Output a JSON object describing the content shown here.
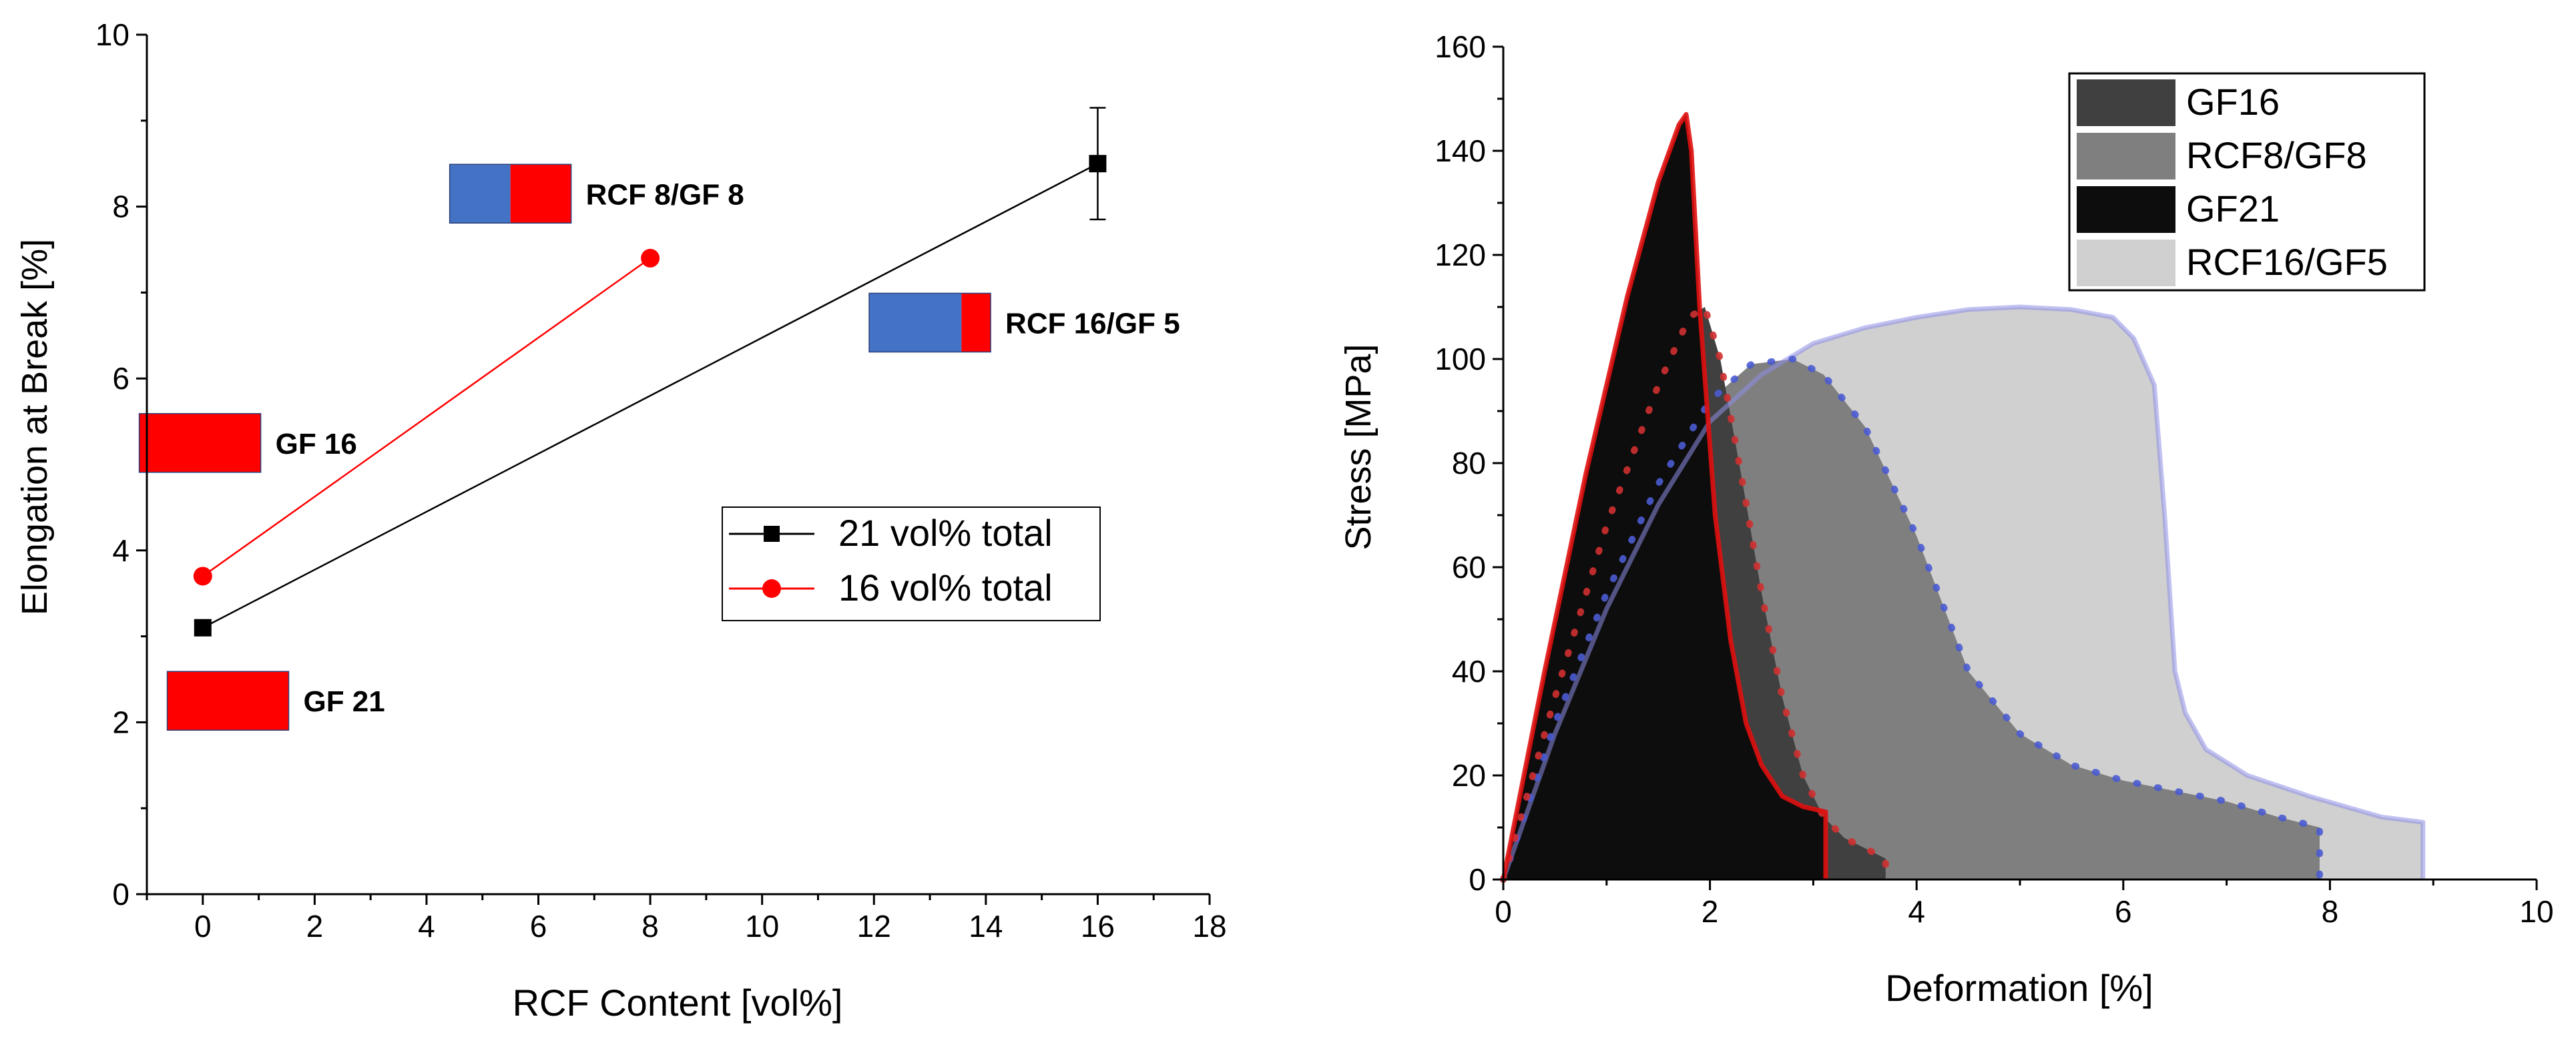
{
  "chart_data": [
    {
      "type": "scatter",
      "title": "",
      "xlabel": "RCF Content [vol%]",
      "ylabel": "Elongation at Break [%]",
      "xlim": [
        -1,
        18
      ],
      "ylim": [
        0,
        10
      ],
      "xticks": [
        0,
        2,
        4,
        6,
        8,
        10,
        12,
        14,
        16,
        18
      ],
      "yticks": [
        0,
        2,
        4,
        6,
        8,
        10
      ],
      "grid": false,
      "legend_position": "center-right",
      "series": [
        {
          "name": "21 vol% total",
          "marker": "square",
          "color": "#000000",
          "x": [
            0,
            16
          ],
          "y": [
            3.1,
            8.5
          ],
          "error": [
            0,
            0.65
          ]
        },
        {
          "name": "16 vol% total",
          "marker": "circle",
          "color": "#ff0000",
          "x": [
            0,
            8
          ],
          "y": [
            3.7,
            7.4
          ],
          "error": [
            0,
            0
          ]
        }
      ],
      "annotations": [
        {
          "label": "RCF 8/GF 8",
          "center_x": 5.5,
          "center_y": 8.15,
          "rcf_fraction": 0.5
        },
        {
          "label": "RCF 16/GF 5",
          "center_x": 13.0,
          "center_y": 6.65,
          "rcf_fraction": 0.76
        },
        {
          "label": "GF 16",
          "center_x": -0.05,
          "center_y": 5.25,
          "rcf_fraction": 0
        },
        {
          "label": "GF 21",
          "center_x": 0.45,
          "center_y": 2.25,
          "rcf_fraction": 0
        }
      ],
      "bar_colors": {
        "rcf": "#4472c4",
        "gf": "#ff0000"
      }
    },
    {
      "type": "area",
      "title": "",
      "xlabel": "Deformation [%]",
      "ylabel": "Stress [MPa]",
      "xlim": [
        0,
        10
      ],
      "ylim": [
        0,
        160
      ],
      "xticks": [
        0,
        2,
        4,
        6,
        8,
        10
      ],
      "yticks": [
        0,
        20,
        40,
        60,
        80,
        100,
        120,
        140,
        160
      ],
      "grid": false,
      "legend_position": "top-right",
      "legend": [
        "GF16",
        "RCF8/GF8",
        "GF21",
        "RCF16/GF5"
      ],
      "series": [
        {
          "name": "RCF16/GF5",
          "fill": "#d0d0d0",
          "outline": "#8e8ee8",
          "x": [
            0,
            0.5,
            1,
            1.5,
            2,
            2.5,
            3,
            3.5,
            4,
            4.5,
            5,
            5.5,
            5.9,
            6.1,
            6.3,
            6.4,
            6.5,
            6.6,
            6.8,
            7.2,
            7.8,
            8.5,
            8.9,
            8.9
          ],
          "y": [
            0,
            28,
            52,
            72,
            88,
            97,
            103,
            106,
            108,
            109.5,
            110,
            109.5,
            108,
            104,
            95,
            70,
            40,
            32,
            25,
            20,
            16,
            12,
            11,
            0
          ]
        },
        {
          "name": "RCF8/GF8",
          "fill": "#7f7f7f",
          "outline": "#4a5bd0",
          "x": [
            0,
            0.5,
            1,
            1.5,
            2,
            2.4,
            2.8,
            3.1,
            3.5,
            4,
            4.5,
            5,
            5.5,
            6,
            6.5,
            7,
            7.5,
            7.9,
            7.9
          ],
          "y": [
            0,
            30,
            55,
            76,
            92,
            99,
            100,
            97,
            87,
            66,
            40,
            28,
            22,
            19,
            17,
            15,
            12,
            10,
            0
          ]
        },
        {
          "name": "GF16",
          "fill": "#404040",
          "outline": "#d03030",
          "x": [
            0,
            0.5,
            1,
            1.5,
            1.8,
            1.95,
            2.1,
            2.3,
            2.5,
            2.7,
            2.9,
            3.1,
            3.3,
            3.5,
            3.7,
            3.7
          ],
          "y": [
            0,
            35,
            68,
            95,
            108,
            110,
            100,
            78,
            55,
            35,
            20,
            12,
            8,
            6,
            4,
            0
          ]
        },
        {
          "name": "GF21",
          "fill": "#0d0d0d",
          "outline": "#e01010",
          "x": [
            0,
            0.4,
            0.8,
            1.2,
            1.5,
            1.7,
            1.77,
            1.82,
            1.9,
            2.05,
            2.2,
            2.35,
            2.5,
            2.7,
            2.9,
            3.12,
            3.12
          ],
          "y": [
            0,
            40,
            78,
            112,
            134,
            145,
            147,
            140,
            110,
            70,
            46,
            30,
            22,
            16,
            14,
            13,
            0
          ]
        }
      ]
    }
  ]
}
